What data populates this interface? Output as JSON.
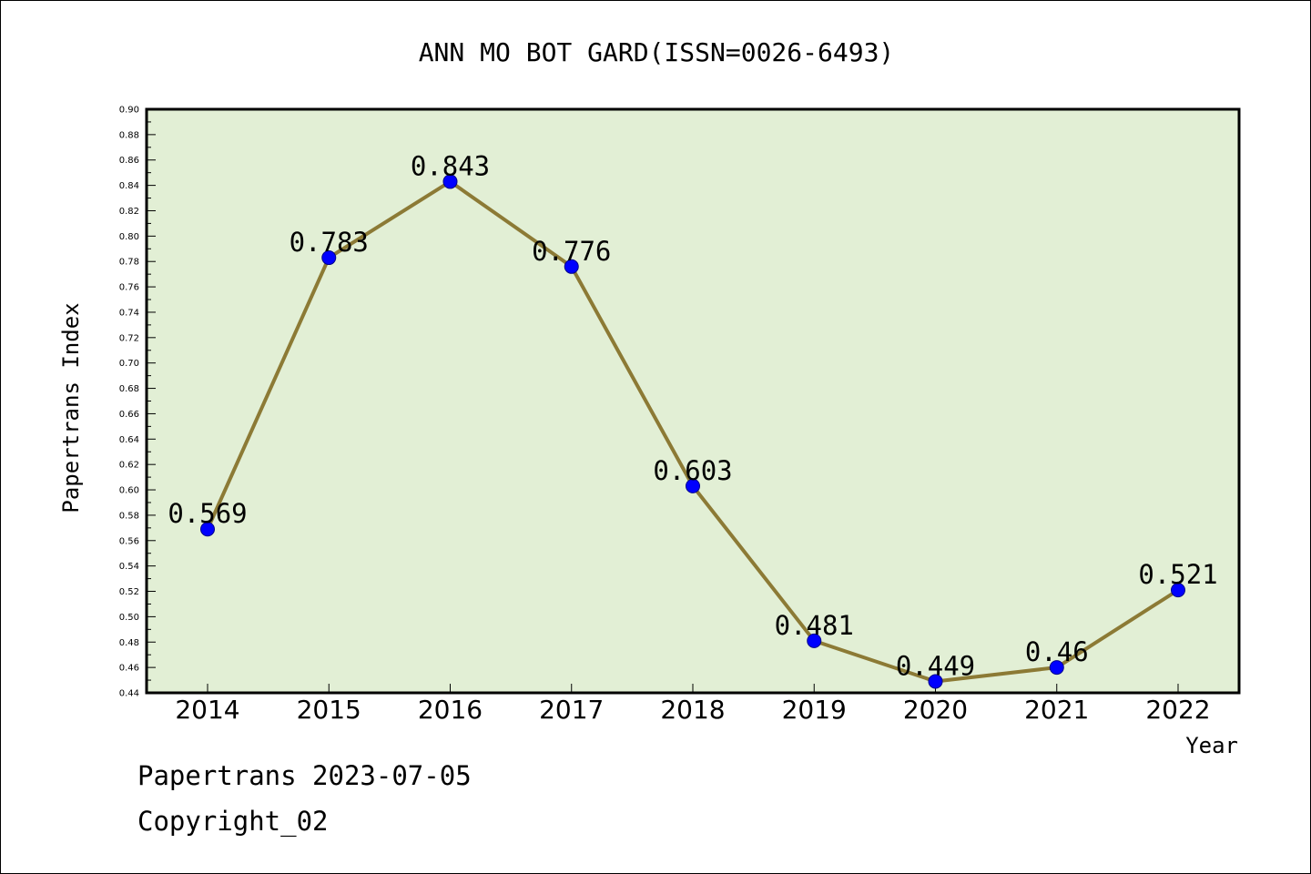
{
  "chart_data": {
    "type": "line",
    "title": "ANN MO BOT GARD(ISSN=0026-6493)",
    "xlabel": "Year",
    "ylabel": "Papertrans Index",
    "categories": [
      "2014",
      "2015",
      "2016",
      "2017",
      "2018",
      "2019",
      "2020",
      "2021",
      "2022"
    ],
    "values": [
      0.569,
      0.783,
      0.843,
      0.776,
      0.603,
      0.481,
      0.449,
      0.46,
      0.521
    ],
    "data_labels": [
      "0.569",
      "0.783",
      "0.843",
      "0.776",
      "0.603",
      "0.481",
      "0.449",
      "0.46",
      "0.521"
    ],
    "ylim": [
      0.44,
      0.9
    ],
    "yticks": [
      "0.44",
      "0.46",
      "0.48",
      "0.50",
      "0.52",
      "0.54",
      "0.56",
      "0.58",
      "0.60",
      "0.62",
      "0.64",
      "0.66",
      "0.68",
      "0.70",
      "0.72",
      "0.74",
      "0.76",
      "0.78",
      "0.80",
      "0.82",
      "0.84",
      "0.86",
      "0.88",
      "0.90"
    ],
    "grid": false,
    "colors": {
      "plot_background": "#e2efd5",
      "line": "#8c7a35",
      "marker": "#0000ff",
      "marker_edge": "#00008b"
    }
  },
  "footer": {
    "line1": "Papertrans 2023-07-05",
    "line2": "Copyright_02"
  }
}
